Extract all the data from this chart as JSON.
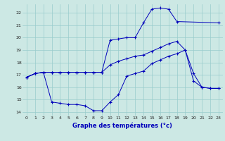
{
  "title": "Graphe des températures (°c)",
  "bg_color": "#cce8e4",
  "line_color": "#0000bb",
  "grid_color": "#99cccc",
  "ylim": [
    13.7,
    22.7
  ],
  "xlim": [
    -0.5,
    23.5
  ],
  "yticks": [
    14,
    15,
    16,
    17,
    18,
    19,
    20,
    21,
    22
  ],
  "xticks": [
    0,
    1,
    2,
    3,
    4,
    5,
    6,
    7,
    8,
    9,
    10,
    11,
    12,
    13,
    14,
    15,
    16,
    17,
    18,
    19,
    20,
    21,
    22,
    23
  ],
  "series1": {
    "x": [
      0,
      1,
      2,
      3,
      4,
      5,
      6,
      7,
      8,
      9,
      10,
      11,
      12,
      13,
      14,
      15,
      16,
      17,
      18,
      23
    ],
    "y": [
      16.8,
      17.1,
      17.2,
      17.2,
      17.2,
      17.2,
      17.2,
      17.2,
      17.2,
      17.2,
      19.8,
      19.9,
      20.0,
      20.0,
      21.2,
      22.3,
      22.4,
      22.3,
      21.3,
      21.2
    ]
  },
  "series2": {
    "x": [
      0,
      1,
      2,
      3,
      4,
      5,
      6,
      7,
      8,
      9,
      10,
      11,
      12,
      13,
      14,
      15,
      16,
      17,
      18,
      19,
      20,
      21,
      22,
      23
    ],
    "y": [
      16.8,
      17.1,
      17.2,
      14.8,
      14.7,
      14.6,
      14.6,
      14.5,
      14.1,
      14.1,
      14.8,
      15.4,
      16.9,
      17.1,
      17.3,
      17.9,
      18.2,
      18.5,
      18.7,
      19.0,
      17.1,
      16.0,
      15.9,
      15.9
    ]
  },
  "series3": {
    "x": [
      0,
      1,
      2,
      3,
      4,
      5,
      6,
      7,
      8,
      9,
      10,
      11,
      12,
      13,
      14,
      15,
      16,
      17,
      18,
      19,
      20,
      21,
      22,
      23
    ],
    "y": [
      16.8,
      17.1,
      17.2,
      17.2,
      17.2,
      17.2,
      17.2,
      17.2,
      17.2,
      17.2,
      17.8,
      18.1,
      18.3,
      18.5,
      18.6,
      18.9,
      19.2,
      19.5,
      19.7,
      19.0,
      16.5,
      16.0,
      15.9,
      15.9
    ]
  }
}
